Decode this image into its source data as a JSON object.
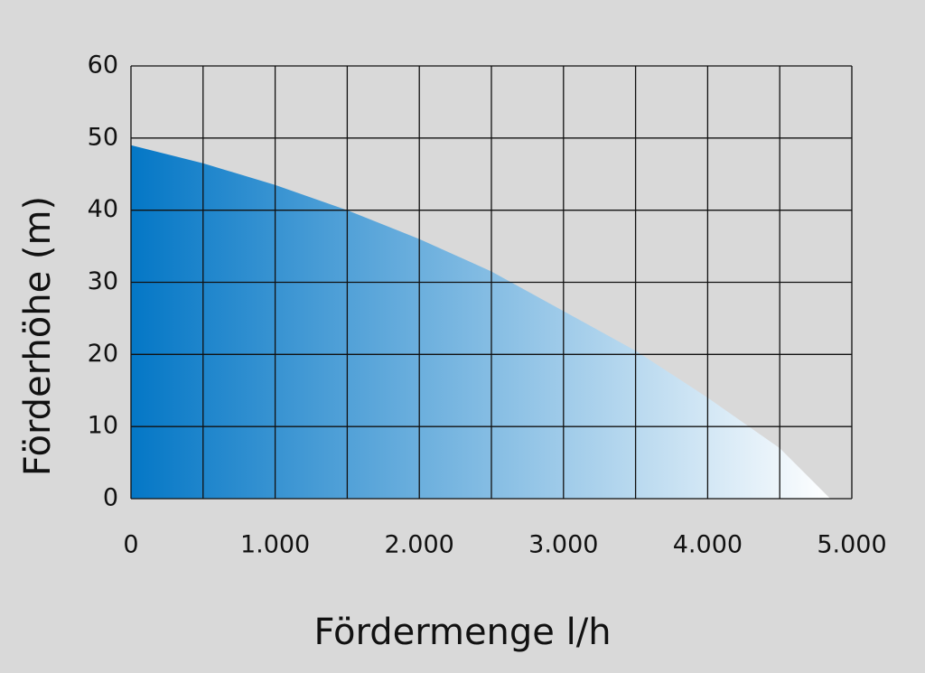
{
  "chart_data": {
    "type": "area",
    "x_label": "Fördermenge l/h",
    "y_label": "Förderhöhe (m)",
    "x": [
      0,
      500,
      1000,
      1500,
      2000,
      2500,
      3000,
      3500,
      4000,
      4500,
      4850
    ],
    "values": [
      49,
      46.5,
      43.5,
      40,
      36,
      31.5,
      26,
      20.5,
      14,
      7,
      0
    ],
    "color": "#0477c6",
    "xlim": [
      0,
      5000
    ],
    "ylim": [
      0,
      60
    ],
    "xticks": [
      0,
      {
        "value": 500,
        "label": null
      },
      {
        "value": 1000,
        "label": "1.000"
      },
      {
        "value": 1500,
        "label": null
      },
      {
        "value": 2000,
        "label": "2.000"
      },
      {
        "value": 2500,
        "label": null
      },
      {
        "value": 3000,
        "label": "3.000"
      },
      {
        "value": 3500,
        "label": null
      },
      {
        "value": 4000,
        "label": "4.000"
      },
      {
        "value": 4500,
        "label": null
      },
      {
        "value": 5000,
        "label": "5.000"
      }
    ],
    "yticks": [
      0,
      10,
      20,
      30,
      40,
      50,
      60
    ],
    "grid": true
  }
}
